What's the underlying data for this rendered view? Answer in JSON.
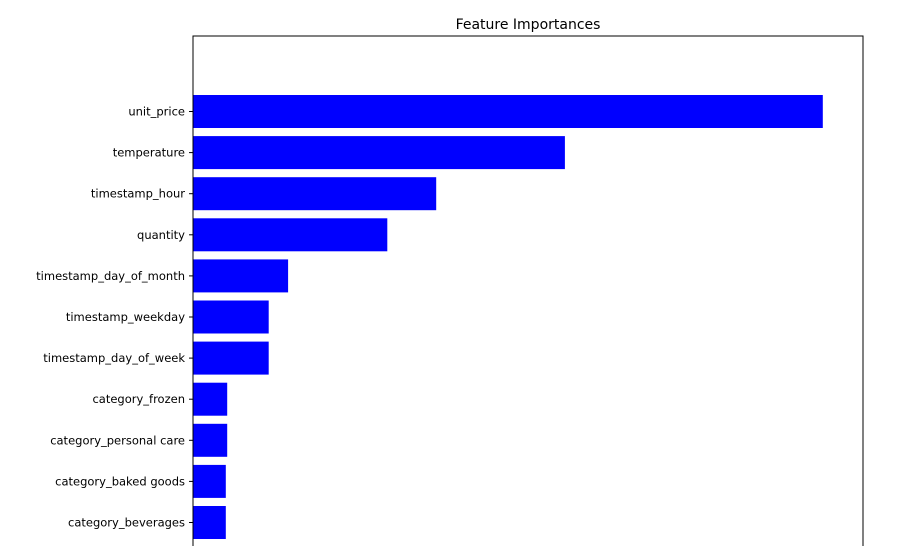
{
  "chart_data": {
    "type": "bar",
    "orientation": "horizontal",
    "title": "Feature Importances",
    "xlabel": "",
    "ylabel": "",
    "categories": [
      "unit_price",
      "temperature",
      "timestamp_hour",
      "quantity",
      "timestamp_day_of_month",
      "timestamp_weekday",
      "timestamp_day_of_week",
      "category_frozen",
      "category_personal care",
      "category_baked goods",
      "category_beverages"
    ],
    "values": [
      0.94,
      0.555,
      0.363,
      0.29,
      0.142,
      0.113,
      0.113,
      0.051,
      0.051,
      0.049,
      0.049
    ],
    "xlim": [
      0,
      1.0
    ],
    "bar_color": "#0000ff",
    "grid": false,
    "legend": "none"
  }
}
